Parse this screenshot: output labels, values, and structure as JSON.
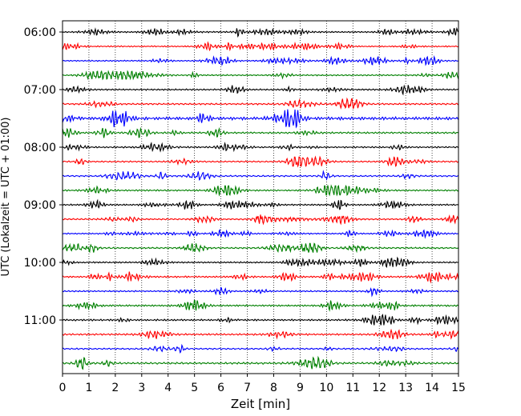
{
  "chart_data": {
    "type": "line",
    "title": "",
    "xlabel": "Zeit  [min]",
    "ylabel": "UTC (Lokalzeit = UTC + 01:00)",
    "xlim": [
      0,
      15
    ],
    "x_ticks": [
      "0",
      "1",
      "2",
      "3",
      "4",
      "5",
      "6",
      "7",
      "8",
      "9",
      "10",
      "11",
      "12",
      "13",
      "14",
      "15"
    ],
    "y_ticks": [
      "06:00",
      "07:00",
      "08:00",
      "09:00",
      "10:00",
      "11:00"
    ],
    "grid": "vertical dotted lines at each minute",
    "trace_interval_min": 15,
    "first_trace": "06:00",
    "trace_count": 24,
    "color_cycle": [
      "#000000",
      "#ff0000",
      "#0000ff",
      "#008000"
    ],
    "series": [
      {
        "start": "06:00",
        "color": "#000000",
        "amplitude": 0.35
      },
      {
        "start": "06:15",
        "color": "#ff0000",
        "amplitude": 0.3
      },
      {
        "start": "06:30",
        "color": "#0000ff",
        "amplitude": 0.3
      },
      {
        "start": "06:45",
        "color": "#008000",
        "amplitude": 0.3
      },
      {
        "start": "07:00",
        "color": "#000000",
        "amplitude": 0.35
      },
      {
        "start": "07:15",
        "color": "#ff0000",
        "amplitude": 0.4
      },
      {
        "start": "07:30",
        "color": "#0000ff",
        "amplitude": 0.7
      },
      {
        "start": "07:45",
        "color": "#008000",
        "amplitude": 0.4
      },
      {
        "start": "08:00",
        "color": "#000000",
        "amplitude": 0.35
      },
      {
        "start": "08:15",
        "color": "#ff0000",
        "amplitude": 0.35
      },
      {
        "start": "08:30",
        "color": "#0000ff",
        "amplitude": 0.35
      },
      {
        "start": "08:45",
        "color": "#008000",
        "amplitude": 0.35
      },
      {
        "start": "09:00",
        "color": "#000000",
        "amplitude": 0.35
      },
      {
        "start": "09:15",
        "color": "#ff0000",
        "amplitude": 0.35
      },
      {
        "start": "09:30",
        "color": "#0000ff",
        "amplitude": 0.3
      },
      {
        "start": "09:45",
        "color": "#008000",
        "amplitude": 0.35
      },
      {
        "start": "10:00",
        "color": "#000000",
        "amplitude": 0.35
      },
      {
        "start": "10:15",
        "color": "#ff0000",
        "amplitude": 0.4
      },
      {
        "start": "10:30",
        "color": "#0000ff",
        "amplitude": 0.35
      },
      {
        "start": "10:45",
        "color": "#008000",
        "amplitude": 0.4
      },
      {
        "start": "11:00",
        "color": "#000000",
        "amplitude": 0.4
      },
      {
        "start": "11:15",
        "color": "#ff0000",
        "amplitude": 0.4
      },
      {
        "start": "11:30",
        "color": "#0000ff",
        "amplitude": 0.35
      },
      {
        "start": "11:45",
        "color": "#008000",
        "amplitude": 0.45
      }
    ]
  }
}
